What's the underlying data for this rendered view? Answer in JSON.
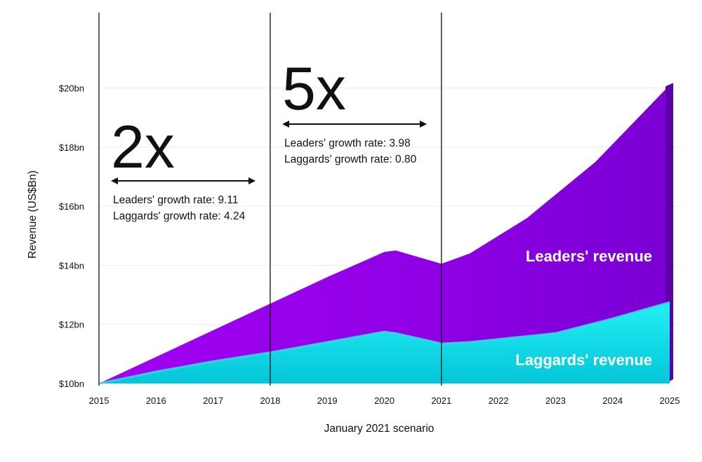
{
  "chart_data": {
    "type": "area",
    "title": "",
    "xlabel": "January 2021 scenario",
    "ylabel": "Revenue (US$Bn)",
    "x": [
      2015,
      2016,
      2017,
      2018,
      2019,
      2020,
      2021,
      2022,
      2023,
      2024,
      2025
    ],
    "x_tick_labels": [
      "2015",
      "2016",
      "2017",
      "2018",
      "2019",
      "2020",
      "2021",
      "2022",
      "2023",
      "2024",
      "2025"
    ],
    "y_tick_values": [
      10,
      12,
      14,
      16,
      18,
      20
    ],
    "y_tick_labels": [
      "$10bn",
      "$12bn",
      "$14bn",
      "$16bn",
      "$18bn",
      "$20bn"
    ],
    "ylim": [
      10,
      22.5
    ],
    "xlim": [
      2015,
      2025.2
    ],
    "grid": "horizontal",
    "series": [
      {
        "name": "Leaders' revenue",
        "color": "#8f00e0",
        "x": [
          2015,
          2016,
          2017,
          2018,
          2019,
          2020,
          2020.2,
          2021,
          2021.5,
          2022.5,
          2023.7,
          2025
        ],
        "values": [
          10.0,
          10.9,
          11.8,
          12.7,
          13.6,
          14.45,
          14.5,
          14.05,
          14.4,
          15.6,
          17.5,
          20.1
        ]
      },
      {
        "name": "Laggards' revenue",
        "color": "#19e3ee",
        "x": [
          2015,
          2016,
          2017,
          2018,
          2019,
          2020,
          2020.2,
          2021,
          2021.5,
          2022,
          2023,
          2024,
          2025
        ],
        "values": [
          10.0,
          10.4,
          10.75,
          11.05,
          11.4,
          11.75,
          11.7,
          11.35,
          11.4,
          11.5,
          11.7,
          12.2,
          12.75
        ]
      }
    ],
    "annotations": {
      "period1": {
        "multiplier": "2x",
        "leaders_line": "Leaders' growth rate: 9.11",
        "laggards_line": "Laggards' growth rate: 4.24"
      },
      "period2": {
        "multiplier": "5x",
        "leaders_line": "Leaders' growth rate: 3.98",
        "laggards_line": "Laggards' growth rate: 0.80"
      }
    },
    "period_dividers": [
      2015,
      2018,
      2021
    ]
  }
}
